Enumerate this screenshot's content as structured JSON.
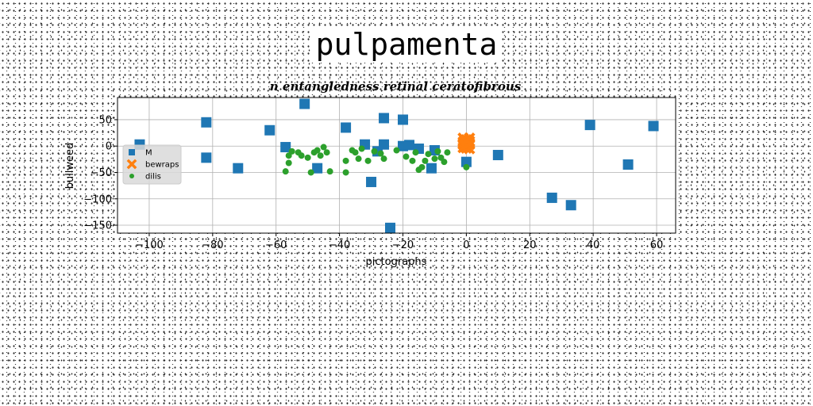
{
  "figure_title": "pulpamenta",
  "chart_data": {
    "type": "scatter",
    "title": "n entangledness retinal ceratofibrous",
    "xlabel": "pictographs",
    "ylabel": "bullweed",
    "xlim": [
      -110,
      66
    ],
    "ylim": [
      -165,
      92
    ],
    "xticks": [
      -100,
      -80,
      -60,
      -40,
      -20,
      0,
      20,
      40,
      60
    ],
    "yticks": [
      -150,
      -100,
      -50,
      0,
      50
    ],
    "xtick_labels": [
      "−100",
      "−80",
      "−60",
      "−40",
      "−20",
      "0",
      "20",
      "40",
      "60"
    ],
    "ytick_labels": [
      "−150",
      "−100",
      "−50",
      "0",
      "50"
    ],
    "grid": true,
    "legend_position": "center-left",
    "series": [
      {
        "name": "M",
        "color": "#1f77b4",
        "marker": "square",
        "points": [
          [
            -103,
            3
          ],
          [
            -82,
            45
          ],
          [
            -82,
            -22
          ],
          [
            -72,
            -42
          ],
          [
            -62,
            30
          ],
          [
            -51,
            80
          ],
          [
            -57,
            -2
          ],
          [
            -47,
            -42
          ],
          [
            -38,
            35
          ],
          [
            -32,
            3
          ],
          [
            -30,
            -68
          ],
          [
            -28,
            -10
          ],
          [
            -26,
            53
          ],
          [
            -26,
            3
          ],
          [
            -24,
            -155
          ],
          [
            -20,
            0
          ],
          [
            -18,
            2
          ],
          [
            -20,
            50
          ],
          [
            -15,
            -5
          ],
          [
            -11,
            -42
          ],
          [
            -10,
            -8
          ],
          [
            0,
            -30
          ],
          [
            10,
            -17
          ],
          [
            27,
            -98
          ],
          [
            33,
            -112
          ],
          [
            39,
            40
          ],
          [
            51,
            -35
          ],
          [
            59,
            38
          ]
        ]
      },
      {
        "name": "bewraps",
        "color": "#ff7f0e",
        "marker": "x",
        "points": [
          [
            -1,
            15
          ],
          [
            0,
            12
          ],
          [
            1,
            15
          ],
          [
            -1,
            8
          ],
          [
            0,
            6
          ],
          [
            1,
            9
          ],
          [
            -1,
            3
          ],
          [
            0,
            1
          ],
          [
            1,
            3
          ],
          [
            -1,
            -3
          ],
          [
            0,
            -2
          ],
          [
            1,
            -5
          ],
          [
            0,
            -4
          ],
          [
            -1,
            5
          ],
          [
            1,
            5
          ],
          [
            0,
            10
          ]
        ]
      },
      {
        "name": "dilis",
        "color": "#2ca02c",
        "marker": "circle",
        "points": [
          [
            -57,
            -48
          ],
          [
            -56,
            -18
          ],
          [
            -55,
            -10
          ],
          [
            -53,
            -12
          ],
          [
            -52,
            -18
          ],
          [
            -50,
            -22
          ],
          [
            -49,
            -50
          ],
          [
            -48,
            -12
          ],
          [
            -47,
            -8
          ],
          [
            -46,
            -18
          ],
          [
            -45,
            -2
          ],
          [
            -44,
            -12
          ],
          [
            -43,
            -48
          ],
          [
            -56,
            -32
          ],
          [
            -38,
            -28
          ],
          [
            -38,
            -50
          ],
          [
            -36,
            -8
          ],
          [
            -35,
            -12
          ],
          [
            -34,
            -24
          ],
          [
            -33,
            -5
          ],
          [
            -31,
            -28
          ],
          [
            -29,
            -10
          ],
          [
            -27,
            -14
          ],
          [
            -26,
            -24
          ],
          [
            -22,
            -8
          ],
          [
            -19,
            -20
          ],
          [
            -17,
            -28
          ],
          [
            -16,
            -12
          ],
          [
            -15,
            -45
          ],
          [
            -14,
            -40
          ],
          [
            -13,
            -28
          ],
          [
            -12,
            -15
          ],
          [
            -10,
            -24
          ],
          [
            -9,
            -10
          ],
          [
            -8,
            -22
          ],
          [
            -7,
            -30
          ],
          [
            -6,
            -12
          ],
          [
            0,
            -40
          ]
        ]
      }
    ]
  }
}
